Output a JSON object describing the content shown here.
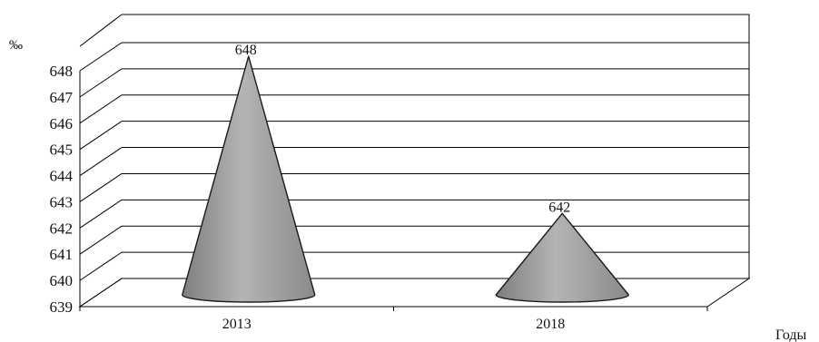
{
  "chart_data": {
    "type": "bar",
    "bar_shape": "cone",
    "categories": [
      "2013",
      "2018"
    ],
    "values": [
      648,
      642
    ],
    "data_labels": [
      "648",
      "642"
    ],
    "ylabel": "‰",
    "xlabel": "Годы",
    "ylim": [
      639,
      648
    ],
    "yticks": [
      "639",
      "640",
      "641",
      "642",
      "643",
      "644",
      "645",
      "646",
      "647",
      "648"
    ],
    "grid": true,
    "legend": false,
    "colors": {
      "cone": "#a6a6a6",
      "outline": "#1a1a1a",
      "grid": "#000000"
    }
  }
}
